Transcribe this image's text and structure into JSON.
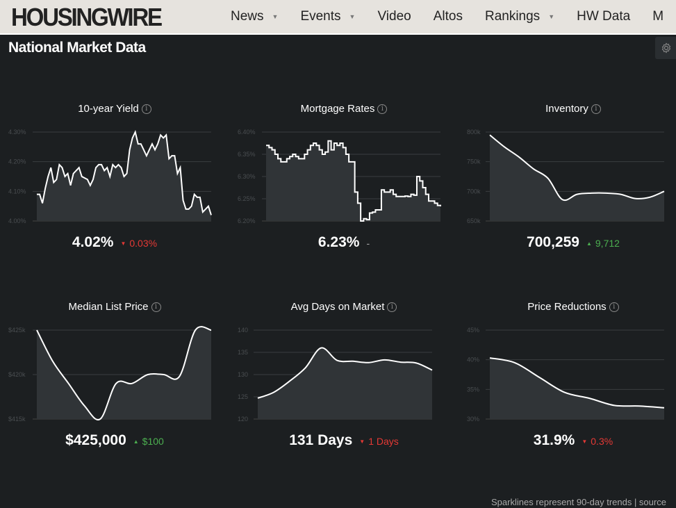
{
  "header": {
    "logo": "HOUSINGWIRE",
    "nav": [
      {
        "label": "News",
        "dropdown": true
      },
      {
        "label": "Events",
        "dropdown": true
      },
      {
        "label": "Video",
        "dropdown": false
      },
      {
        "label": "Altos",
        "dropdown": false
      },
      {
        "label": "Rankings",
        "dropdown": true
      },
      {
        "label": "HW Data",
        "dropdown": false
      },
      {
        "label": "M",
        "dropdown": false
      }
    ]
  },
  "page_title": "National Market Data",
  "footer": "Sparklines represent 90-day trends | source",
  "colors": {
    "up": "#4caf50",
    "down": "#e53935",
    "header_bg": "#e6e3de",
    "bg": "#1c1f21"
  },
  "panels": [
    {
      "title": "10-year Yield",
      "value": "4.02%",
      "change": "0.03%",
      "direction": "down",
      "ticks": [
        "4.30%",
        "4.20%",
        "4.10%",
        "4.00%"
      ],
      "ylim": [
        4.0,
        4.3
      ],
      "curve": "linear",
      "series": [
        4.09,
        4.09,
        4.06,
        4.11,
        4.15,
        4.18,
        4.13,
        4.14,
        4.19,
        4.18,
        4.15,
        4.16,
        4.12,
        4.16,
        4.17,
        4.18,
        4.15,
        4.145,
        4.14,
        4.12,
        4.14,
        4.18,
        4.19,
        4.19,
        4.17,
        4.18,
        4.15,
        4.19,
        4.18,
        4.19,
        4.18,
        4.15,
        4.16,
        4.24,
        4.28,
        4.3,
        4.26,
        4.26,
        4.24,
        4.22,
        4.24,
        4.26,
        4.24,
        4.26,
        4.29,
        4.28,
        4.29,
        4.21,
        4.22,
        4.22,
        4.16,
        4.18,
        4.07,
        4.04,
        4.04,
        4.05,
        4.09,
        4.08,
        4.08,
        4.03,
        4.04,
        4.05,
        4.02
      ]
    },
    {
      "title": "Mortgage Rates",
      "value": "6.23%",
      "change": "-",
      "direction": "flat",
      "ticks": [
        "6.40%",
        "6.35%",
        "6.30%",
        "6.25%",
        "6.20%"
      ],
      "ylim": [
        6.2,
        6.4
      ],
      "curve": "step",
      "series": [
        6.37,
        6.365,
        6.36,
        6.35,
        6.34,
        6.333,
        6.333,
        6.34,
        6.345,
        6.35,
        6.345,
        6.34,
        6.34,
        6.35,
        6.36,
        6.37,
        6.375,
        6.37,
        6.36,
        6.35,
        6.355,
        6.38,
        6.36,
        6.375,
        6.37,
        6.375,
        6.365,
        6.35,
        6.333,
        6.333,
        6.265,
        6.24,
        6.2,
        6.205,
        6.203,
        6.218,
        6.22,
        6.225,
        6.225,
        6.27,
        6.265,
        6.265,
        6.27,
        6.26,
        6.255,
        6.255,
        6.255,
        6.256,
        6.255,
        6.26,
        6.258,
        6.3,
        6.29,
        6.275,
        6.26,
        6.245,
        6.245,
        6.24,
        6.235,
        6.233
      ]
    },
    {
      "title": "Inventory",
      "value": "700,259",
      "change": "9,712",
      "direction": "up",
      "ticks": [
        "800k",
        "750k",
        "700k",
        "650k"
      ],
      "ylim": [
        650,
        800
      ],
      "curve": "smooth",
      "series": [
        795,
        775,
        758,
        738,
        722,
        686,
        695,
        697,
        697,
        695,
        688,
        690,
        700
      ]
    },
    {
      "title": "Median List Price",
      "value": "$425,000",
      "change": "$100",
      "direction": "up",
      "ticks": [
        "$425k",
        "$420k",
        "$415k"
      ],
      "ylim": [
        415,
        425
      ],
      "curve": "smooth",
      "series": [
        425,
        421.5,
        419,
        416.5,
        415,
        419,
        419,
        420,
        420,
        419.8,
        425,
        425
      ]
    },
    {
      "title": "Avg Days on Market",
      "value": "131 Days",
      "change": "1 Days",
      "direction": "down",
      "ticks": [
        "140",
        "135",
        "130",
        "125",
        "120"
      ],
      "ylim": [
        120,
        140
      ],
      "curve": "smooth",
      "series": [
        124.7,
        126,
        128.5,
        131.5,
        136,
        133.2,
        133,
        132.7,
        133.3,
        132.8,
        132.6,
        131
      ]
    },
    {
      "title": "Price Reductions",
      "value": "31.9%",
      "change": "0.3%",
      "direction": "down",
      "ticks": [
        "45%",
        "40%",
        "35%",
        "30%"
      ],
      "ylim": [
        30,
        45
      ],
      "curve": "smooth",
      "series": [
        40.3,
        39.5,
        37,
        34.5,
        33.5,
        32.3,
        32.2,
        31.9
      ]
    }
  ]
}
